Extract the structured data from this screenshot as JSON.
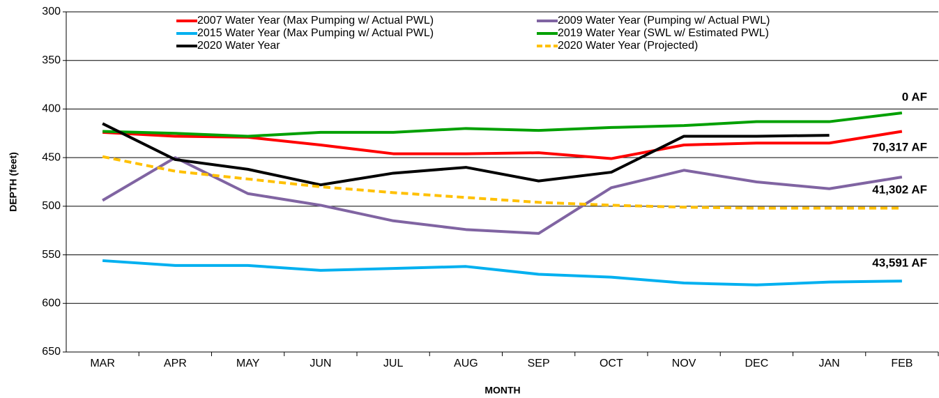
{
  "chart_data": {
    "type": "line",
    "x_label": "MONTH",
    "y_label": "DEPTH (feet)",
    "categories": [
      "MAR",
      "APR",
      "MAY",
      "JUN",
      "JUL",
      "AUG",
      "SEP",
      "OCT",
      "NOV",
      "DEC",
      "JAN",
      "FEB"
    ],
    "series": [
      {
        "name": "2007 Water Year (Max Pumping w/ Actual PWL)",
        "color": "#ff0000",
        "values": [
          424,
          428,
          429,
          437,
          446,
          446,
          445,
          451,
          437,
          435,
          435,
          423
        ]
      },
      {
        "name": "2009 Water Year (Pumping w/ Actual PWL)",
        "color": "#8064a2",
        "values": [
          494,
          450,
          487,
          499,
          515,
          524,
          528,
          481,
          463,
          475,
          482,
          470
        ]
      },
      {
        "name": "2015 Water Year (Max Pumping w/ Actual PWL)",
        "color": "#00b0f0",
        "values": [
          556,
          561,
          561,
          566,
          564,
          562,
          570,
          573,
          579,
          581,
          578,
          577
        ]
      },
      {
        "name": "2019 Water Year (SWL w/ Estimated PWL)",
        "color": "#00a000",
        "values": [
          423,
          425,
          428,
          424,
          424,
          420,
          422,
          419,
          417,
          413,
          413,
          404
        ]
      },
      {
        "name": "2020 Water Year",
        "color": "#000000",
        "values": [
          415,
          452,
          462,
          478,
          466,
          460,
          474,
          465,
          428,
          428,
          427,
          null
        ]
      },
      {
        "name": "2020 Water Year (Projected)",
        "color": "#ffc000",
        "dashed": true,
        "values": [
          449,
          464,
          472,
          480,
          486,
          491,
          496,
          499,
          501,
          502,
          502,
          502
        ]
      }
    ],
    "annotations": [
      {
        "text": "0 AF",
        "color": "#00a000"
      },
      {
        "text": "70,317 AF",
        "color": "#ff0000"
      },
      {
        "text": "41,302 AF",
        "color": "#7030a0"
      },
      {
        "text": "43,591 AF",
        "color": "#00b0f0"
      }
    ],
    "ylim": [
      300,
      650
    ],
    "y_inverted": true,
    "yticks": [
      300,
      350,
      400,
      450,
      500,
      550,
      600,
      650
    ],
    "grid": true
  }
}
